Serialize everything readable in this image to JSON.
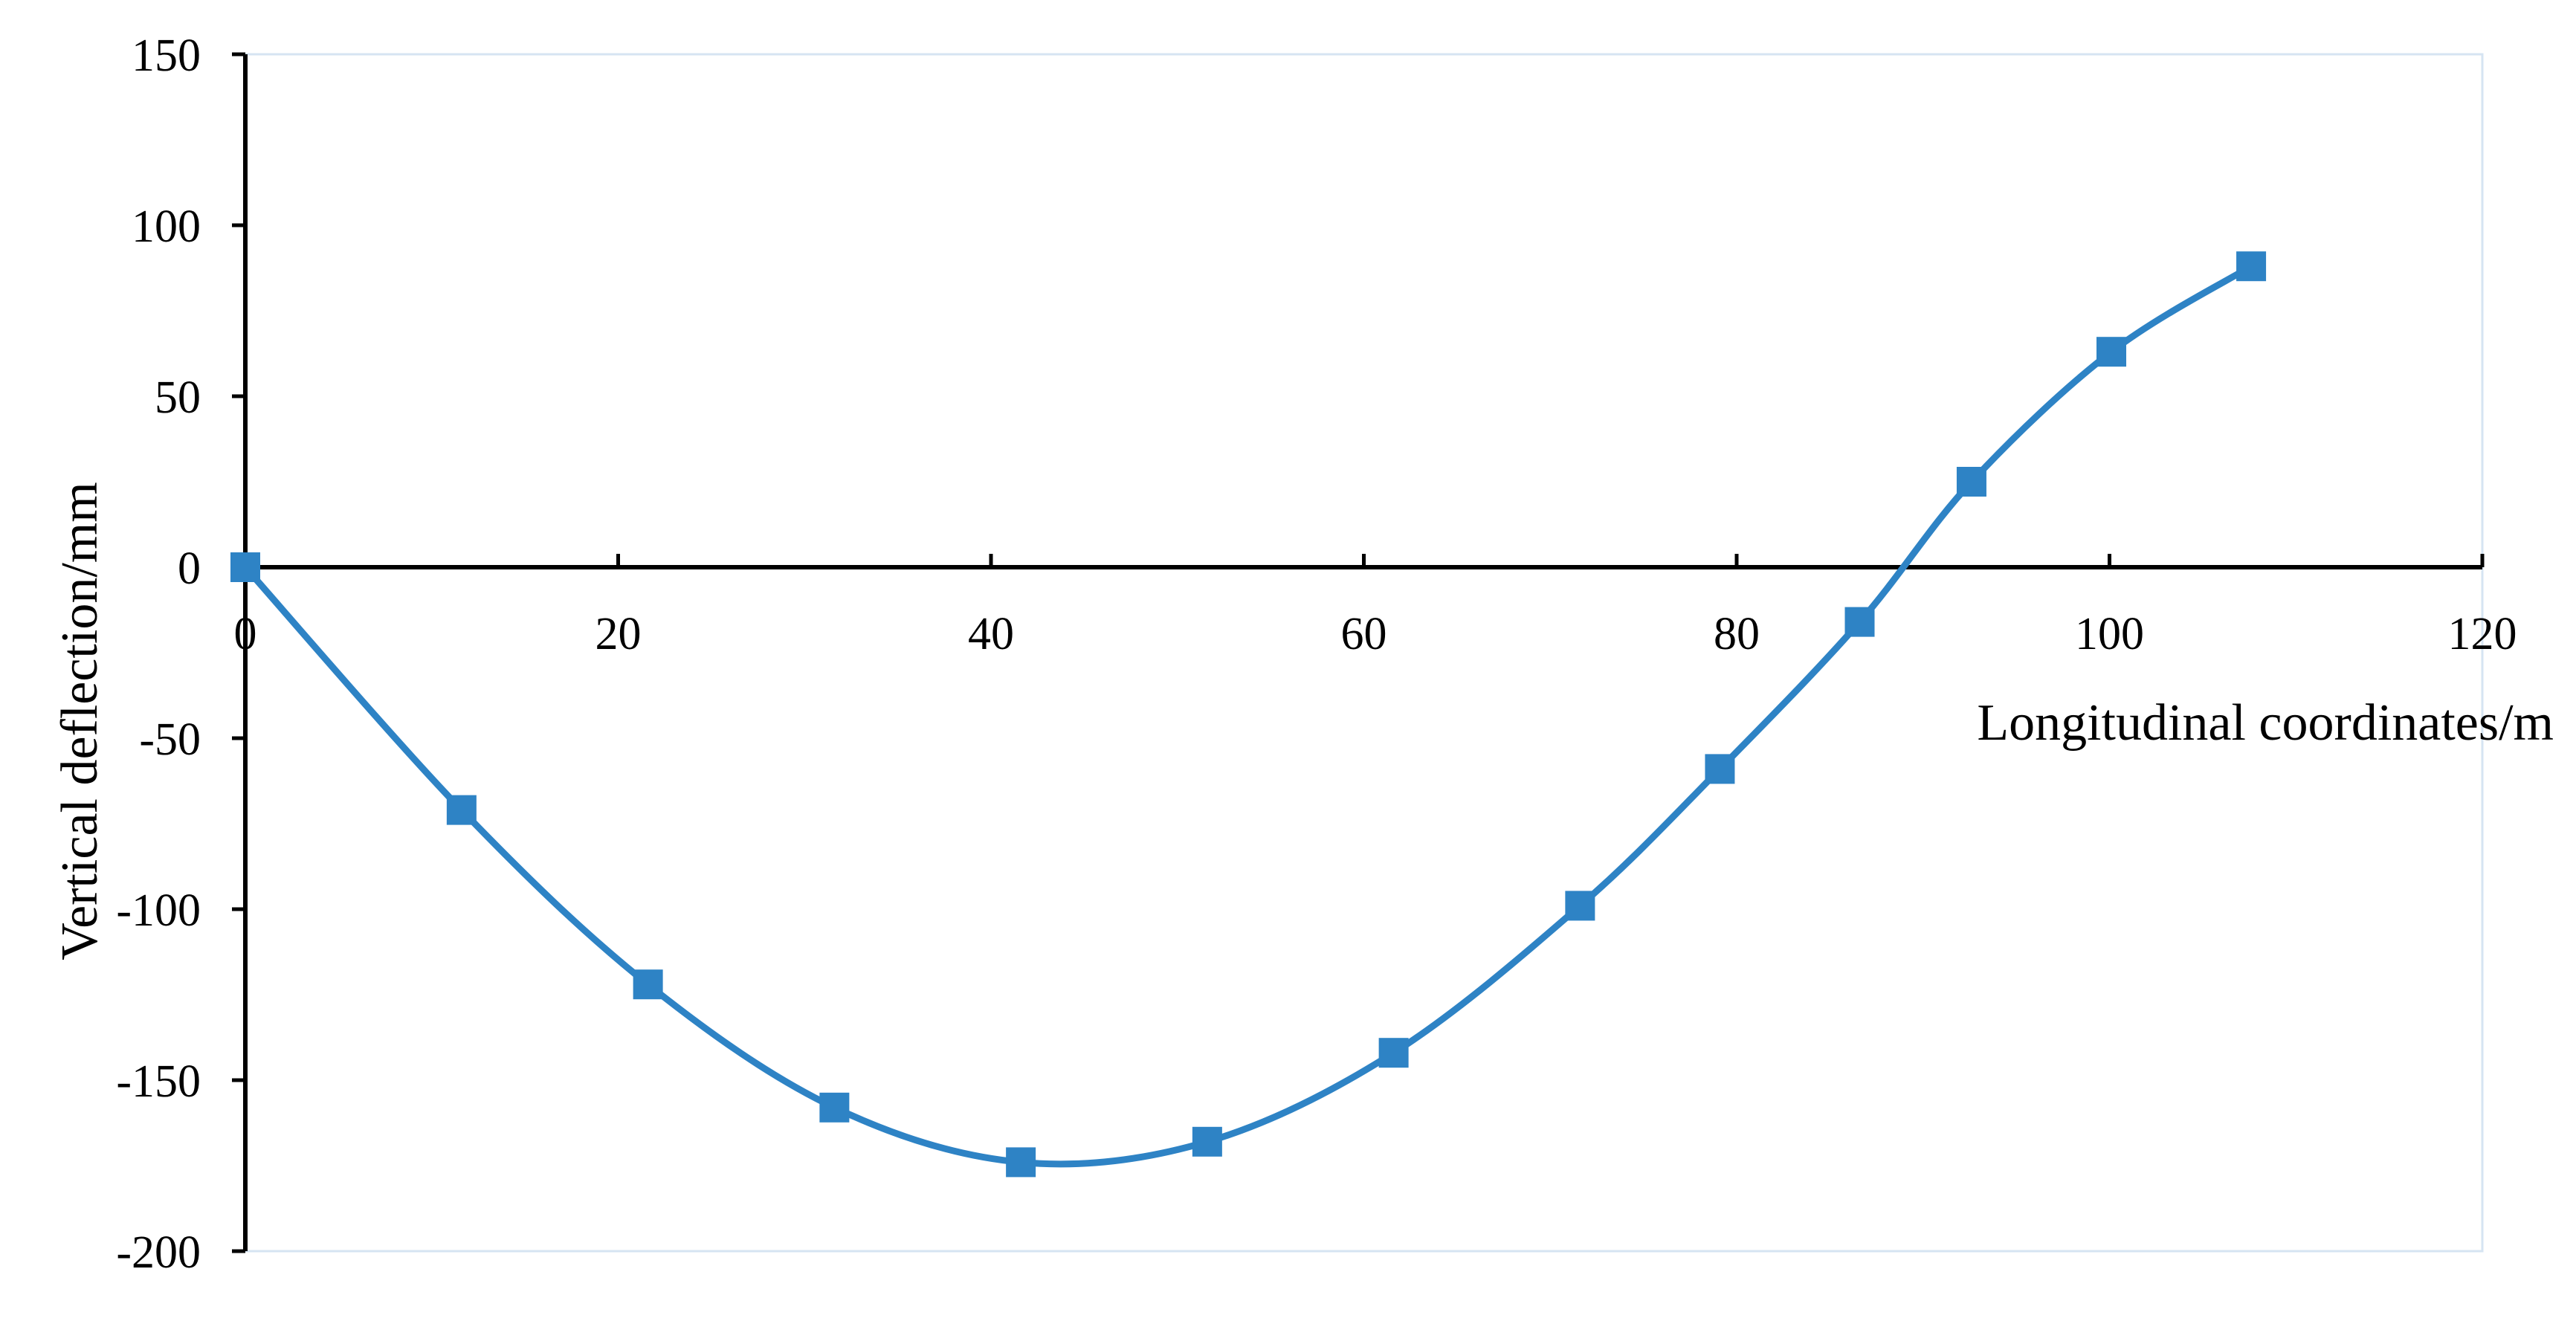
{
  "chart_data": {
    "type": "scatter",
    "title": "",
    "xlabel": "Longitudinal coordinates/m",
    "ylabel": "Vertical deflection/mm",
    "xlim": [
      0,
      120
    ],
    "ylim": [
      -200,
      150
    ],
    "x_ticks": [
      0,
      20,
      40,
      60,
      80,
      100,
      120
    ],
    "y_ticks": [
      150,
      100,
      50,
      0,
      -50,
      -100,
      -150,
      -200
    ],
    "grid": false,
    "legend": "none",
    "marker": "square",
    "smooth_line": true,
    "series": [
      {
        "color": "#2E83C5",
        "x": [
          0,
          11.6,
          21.6,
          31.6,
          41.6,
          51.6,
          61.6,
          71.6,
          79.1,
          86.6,
          92.6,
          100.1,
          107.6
        ],
        "y": [
          0,
          -71,
          -122,
          -158,
          -174,
          -168,
          -142,
          -99,
          -59,
          -16,
          25,
          63,
          88
        ]
      }
    ]
  }
}
